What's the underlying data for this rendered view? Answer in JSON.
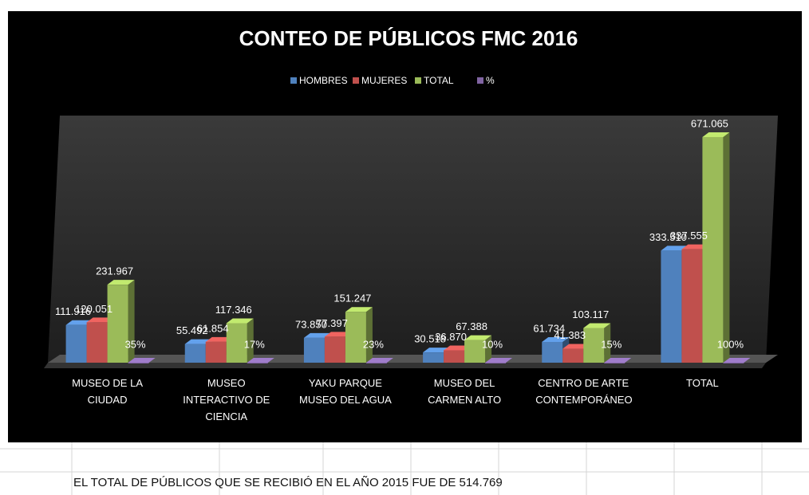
{
  "chart_data": {
    "type": "bar3d",
    "title": "CONTEO DE PÚBLICOS FMC 2016",
    "categories": [
      "MUSEO DE LA CIUDAD",
      "MUSEO INTERACTIVO DE CIENCIA",
      "YAKU PARQUE MUSEO DEL AGUA",
      "MUSEO DEL CARMEN ALTO",
      "CENTRO DE ARTE CONTEMPORÁNEO",
      "TOTAL"
    ],
    "series": [
      {
        "name": "HOMBRES",
        "color": "#4f81bd",
        "values": [
          111916,
          55492,
          73850,
          30518,
          61734,
          333510
        ],
        "value_labels": [
          "111.916",
          "55.492",
          "73.850",
          "30.518",
          "61.734",
          "333.510"
        ]
      },
      {
        "name": "MUJERES",
        "color": "#c0504d",
        "values": [
          120051,
          61854,
          77397,
          36870,
          41383,
          337555
        ],
        "value_labels": [
          "120.051",
          "61.854",
          "77.397",
          "36.870",
          "41.383",
          "337.555"
        ]
      },
      {
        "name": "TOTAL",
        "color": "#9bbb59",
        "values": [
          231967,
          117346,
          151247,
          67388,
          103117,
          671065
        ],
        "value_labels": [
          "231.967",
          "117.346",
          "151.247",
          "67.388",
          "103.117",
          "671.065"
        ]
      },
      {
        "name": "%",
        "color": "#8064a2",
        "values": [
          35,
          17,
          23,
          10,
          15,
          100
        ],
        "value_labels": [
          "35%",
          "17%",
          "23%",
          "10%",
          "15%",
          "100%"
        ]
      }
    ],
    "ylim": [
      0,
      735000
    ],
    "legend": "top"
  },
  "note": "EL TOTAL DE PÚBLICOS QUE SE RECIBIÓ EN EL AÑO 2015 FUE DE 514.769"
}
